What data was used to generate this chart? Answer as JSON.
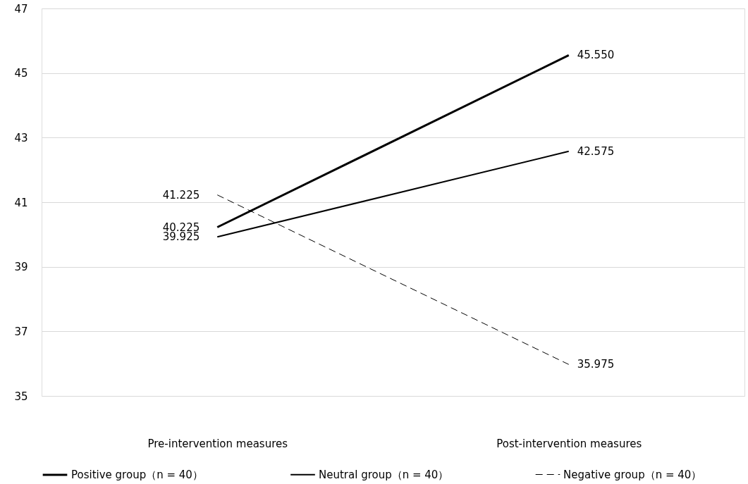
{
  "chart_data": {
    "type": "line",
    "categories": [
      "Pre-intervention measures",
      "Post-intervention measures"
    ],
    "series": [
      {
        "name": "Positive group（n = 40）",
        "color": "#000000",
        "values": [
          40.225,
          45.55
        ],
        "line_style": "solid"
      },
      {
        "name": "Neutral group（n = 40）",
        "color": "#000000",
        "values": [
          39.925,
          42.575
        ],
        "line_style": "solid"
      },
      {
        "name": "Negative group（n = 40）",
        "color": "#000000",
        "values": [
          41.225,
          35.975
        ],
        "line_style": "dashed"
      }
    ],
    "value_labels": [
      [
        "40.225",
        "45.550"
      ],
      [
        "39.925",
        "42.575"
      ],
      [
        "41.225",
        "35.975"
      ]
    ],
    "ylim": [
      35,
      47
    ],
    "yticks": [
      35,
      37,
      39,
      41,
      43,
      45,
      47
    ],
    "grid": "y",
    "legend": "bottom",
    "marker": "none"
  }
}
